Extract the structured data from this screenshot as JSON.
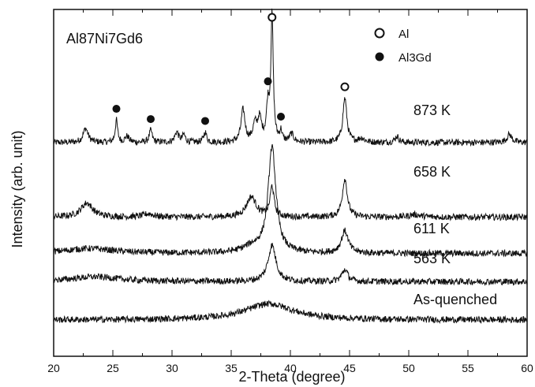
{
  "chart_data": {
    "type": "line",
    "title": "Al87Ni7Gd6",
    "xlabel": "2-Theta (degree)",
    "ylabel": "Intensity (arb. unit)",
    "xlim": [
      20,
      60
    ],
    "x_ticks": [
      20,
      25,
      30,
      35,
      40,
      45,
      50,
      55,
      60
    ],
    "y_ticks_labeled": false,
    "legend": [
      {
        "label": "Al",
        "marker": "open-circle"
      },
      {
        "label": "Al3Gd",
        "marker": "filled-circle"
      }
    ],
    "series": [
      {
        "name": "873 K",
        "baseline": 5.3,
        "peaks": [
          {
            "x": 22.7,
            "h": 0.35,
            "w": 0.25
          },
          {
            "x": 25.3,
            "h": 0.55,
            "w": 0.12
          },
          {
            "x": 26.2,
            "h": 0.15,
            "w": 0.2
          },
          {
            "x": 28.2,
            "h": 0.3,
            "w": 0.15
          },
          {
            "x": 30.4,
            "h": 0.25,
            "w": 0.2
          },
          {
            "x": 31.0,
            "h": 0.18,
            "w": 0.15
          },
          {
            "x": 32.8,
            "h": 0.25,
            "w": 0.15
          },
          {
            "x": 36.0,
            "h": 0.8,
            "w": 0.2
          },
          {
            "x": 37.0,
            "h": 0.4,
            "w": 0.2
          },
          {
            "x": 37.4,
            "h": 0.55,
            "w": 0.2
          },
          {
            "x": 38.1,
            "h": 0.85,
            "w": 0.15
          },
          {
            "x": 38.45,
            "h": 3.1,
            "w": 0.12
          },
          {
            "x": 39.2,
            "h": 0.25,
            "w": 0.12
          },
          {
            "x": 40.1,
            "h": 0.2,
            "w": 0.2
          },
          {
            "x": 44.6,
            "h": 1.1,
            "w": 0.2
          },
          {
            "x": 46.0,
            "h": 0.1,
            "w": 0.3
          },
          {
            "x": 49.0,
            "h": 0.15,
            "w": 0.2
          },
          {
            "x": 58.5,
            "h": 0.2,
            "w": 0.25
          }
        ]
      },
      {
        "name": "658 K",
        "baseline": 3.45,
        "peaks": [
          {
            "x": 22.8,
            "h": 0.35,
            "w": 0.6
          },
          {
            "x": 28.0,
            "h": 0.08,
            "w": 0.5
          },
          {
            "x": 36.7,
            "h": 0.5,
            "w": 0.5
          },
          {
            "x": 38.45,
            "h": 0.75,
            "w": 0.2
          },
          {
            "x": 44.6,
            "h": 0.95,
            "w": 0.25
          },
          {
            "x": 50.5,
            "h": 0.06,
            "w": 0.6
          }
        ]
      },
      {
        "name": "611 K",
        "baseline": 2.55,
        "peaks": [
          {
            "x": 23.0,
            "h": 0.12,
            "w": 2.5
          },
          {
            "x": 38.45,
            "h": 2.6,
            "w": 0.4
          },
          {
            "x": 36.8,
            "h": 0.15,
            "w": 1.0
          },
          {
            "x": 44.6,
            "h": 0.55,
            "w": 0.35
          }
        ]
      },
      {
        "name": "563 K",
        "baseline": 1.85,
        "peaks": [
          {
            "x": 23.5,
            "h": 0.12,
            "w": 2.5
          },
          {
            "x": 38.45,
            "h": 0.9,
            "w": 0.4
          },
          {
            "x": 44.6,
            "h": 0.3,
            "w": 0.3
          }
        ]
      },
      {
        "name": "As-quenched",
        "baseline": 0.9,
        "peaks": [
          {
            "x": 38.2,
            "h": 0.4,
            "w": 2.5
          }
        ]
      }
    ],
    "markers": {
      "Al": [
        38.45,
        44.6
      ],
      "Al3Gd": [
        25.3,
        28.2,
        32.8,
        38.1,
        39.2
      ]
    }
  },
  "legend": {
    "al_label": "Al",
    "al3gd_label": "Al3Gd"
  },
  "title": "Al87Ni7Gd6",
  "axes": {
    "xlabel": "2-Theta (degree)",
    "ylabel": "Intensity (arb. unit)",
    "x_ticks": [
      "20",
      "25",
      "30",
      "35",
      "40",
      "45",
      "50",
      "55",
      "60"
    ]
  },
  "curve_labels": [
    "873 K",
    "658 K",
    "611 K",
    "563 K",
    "As-quenched"
  ]
}
